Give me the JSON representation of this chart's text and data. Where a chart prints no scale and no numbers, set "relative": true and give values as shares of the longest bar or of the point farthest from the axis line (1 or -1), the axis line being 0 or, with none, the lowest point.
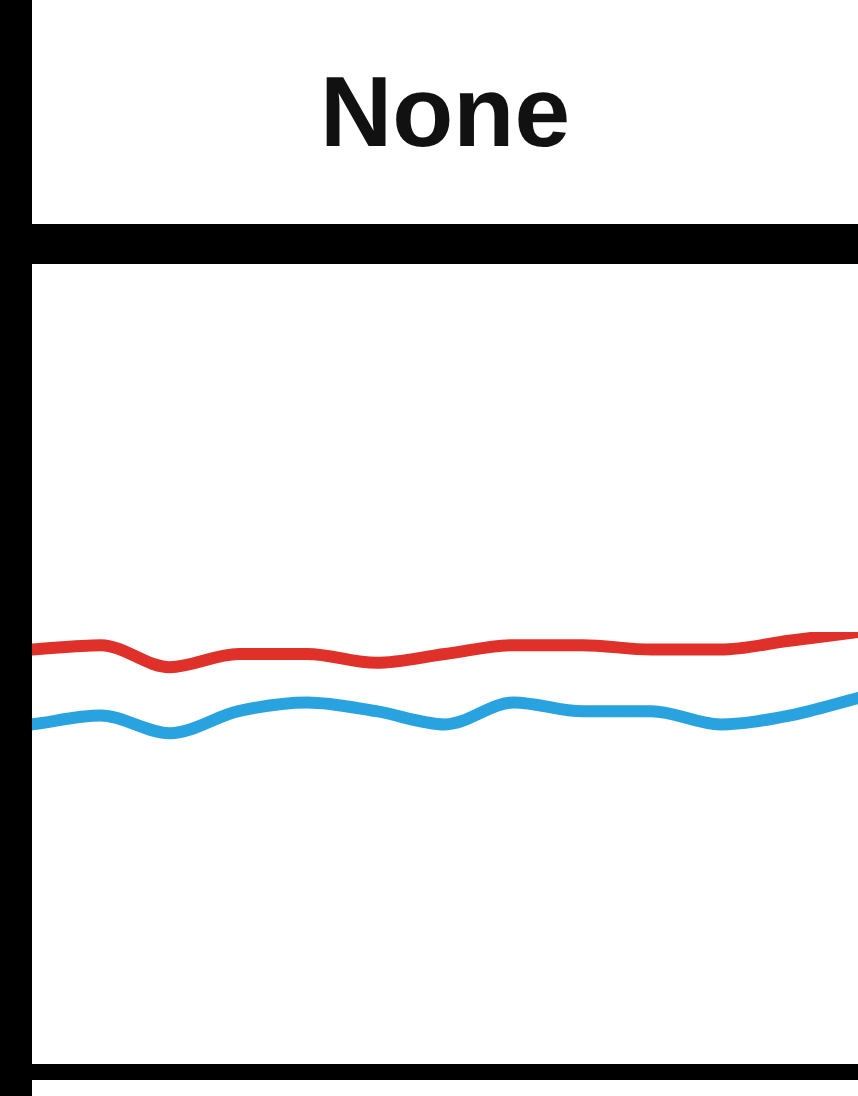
{
  "chart_data": {
    "type": "line",
    "title": "None",
    "relative": true,
    "marker": "none",
    "legend": false,
    "categories": [
      null,
      null,
      null,
      null,
      null,
      null,
      null,
      null,
      null,
      null,
      null,
      null,
      null
    ],
    "series": [
      {
        "color": "#e0302a",
        "values": [
          0.96,
          0.97,
          0.92,
          0.95,
          0.95,
          0.93,
          0.95,
          0.97,
          0.97,
          0.96,
          0.96,
          0.98,
          1
        ]
      },
      {
        "color": "#29a3e0",
        "values": [
          0.79,
          0.81,
          0.77,
          0.82,
          0.84,
          0.82,
          0.79,
          0.84,
          0.82,
          0.82,
          0.79,
          0.81,
          0.85
        ]
      }
    ]
  }
}
